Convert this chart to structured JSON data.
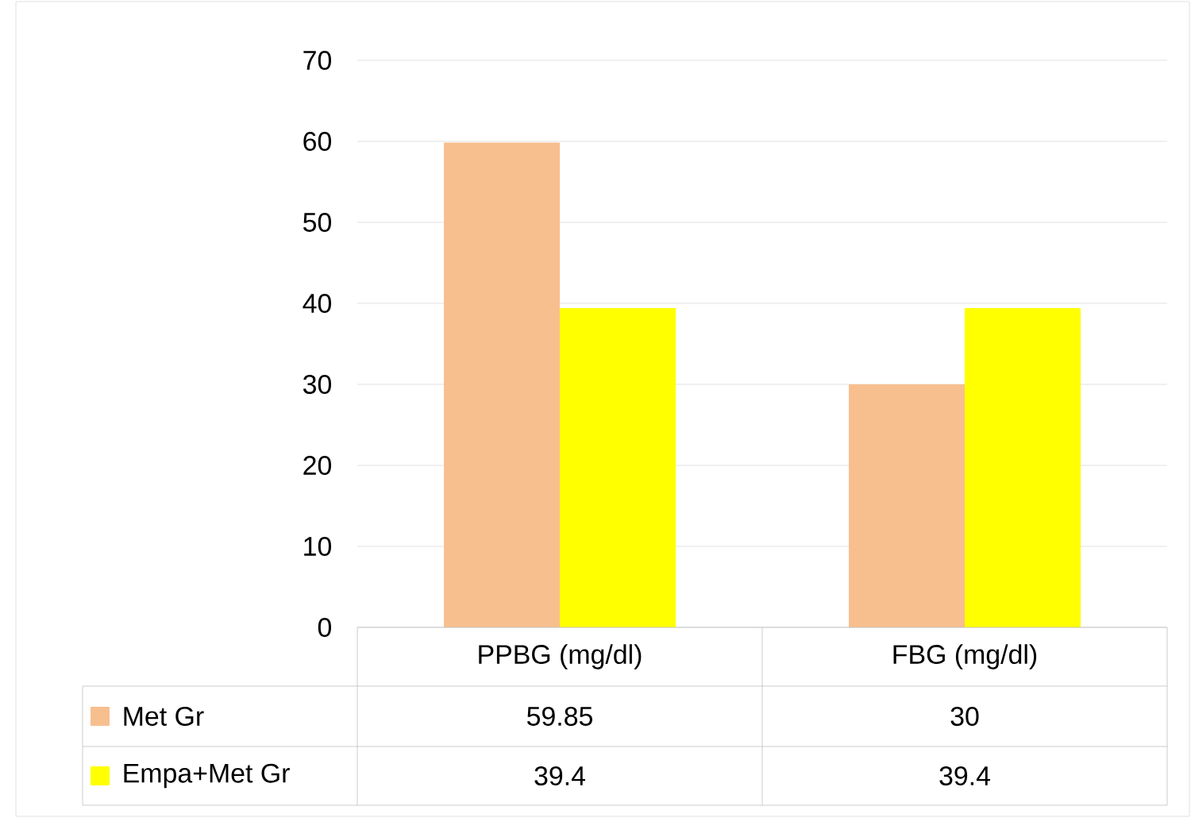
{
  "chart_data": {
    "type": "bar",
    "categories": [
      "PPBG (mg/dl)",
      "FBG (mg/dl)"
    ],
    "series": [
      {
        "name": "Met Gr",
        "color": "#f8bf8e",
        "values": [
          59.85,
          30
        ]
      },
      {
        "name": "Empa+Met Gr",
        "color": "#ffff00",
        "values": [
          39.4,
          39.4
        ]
      }
    ],
    "ylim": [
      0,
      70
    ],
    "yticks": [
      0,
      10,
      20,
      30,
      40,
      50,
      60,
      70
    ],
    "grid": "y",
    "legend": "bottom",
    "data_labels": true
  }
}
